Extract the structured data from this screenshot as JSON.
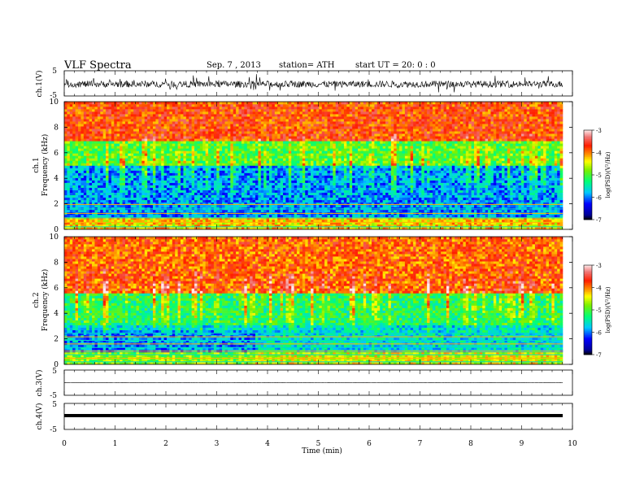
{
  "header": {
    "title": "VLF  Spectra",
    "date": "Sep. 7  , 2013",
    "station": "station= ATH",
    "start": "start  UT  =   20: 0   : 0"
  },
  "chart_data": [
    {
      "type": "line",
      "name": "ch1-waveform",
      "ylabel": "ch.1(V)",
      "ylim": [
        -5,
        5
      ],
      "yticks": [
        "5",
        "-5"
      ],
      "xlim": [
        0,
        9.8
      ],
      "signal": {
        "mean": -0.3,
        "amplitude": "noisy, approx ±1.5 V with spikes to ±3 V"
      }
    },
    {
      "type": "heatmap",
      "name": "ch1-spectrogram",
      "ylabel": "ch.1\nFrequency  (kHz)",
      "ylabel_l1": "ch.1",
      "ylabel_l2": "Frequency  (kHz)",
      "ylim": [
        0,
        10
      ],
      "yticks": [
        "0",
        "2",
        "4",
        "6",
        "8",
        "10"
      ],
      "xlim": [
        0,
        9.8
      ],
      "colorbar": {
        "label": "log(PSD)(V²/Hz)",
        "range": [
          -7,
          -3
        ],
        "ticks": [
          "-3",
          "-4",
          "-5",
          "-6",
          "-7"
        ]
      },
      "bands_log_psd": [
        {
          "f": [
            0,
            1
          ],
          "value": -4.3
        },
        {
          "f": [
            1,
            5
          ],
          "value": -5.9
        },
        {
          "f": [
            5,
            7
          ],
          "value": -5.0
        },
        {
          "f": [
            7,
            10
          ],
          "value": -3.8
        }
      ]
    },
    {
      "type": "heatmap",
      "name": "ch2-spectrogram",
      "ylabel_l1": "ch.2",
      "ylabel_l2": "Frequency  (kHz)",
      "ylim": [
        0,
        10
      ],
      "yticks": [
        "0",
        "2",
        "4",
        "6",
        "8",
        "10"
      ],
      "xlim": [
        0,
        9.8
      ],
      "colorbar": {
        "label": "log(PSD)(V²/Hz)",
        "range": [
          -7,
          -3
        ],
        "ticks": [
          "-3",
          "-4",
          "-5",
          "-6",
          "-7"
        ]
      },
      "bands_log_psd": [
        {
          "f": [
            0,
            1
          ],
          "value": -4.5
        },
        {
          "f": [
            1,
            3
          ],
          "value": -5.6
        },
        {
          "f": [
            3,
            5.5
          ],
          "value": -5.2
        },
        {
          "f": [
            5.5,
            10
          ],
          "value": -3.9
        }
      ],
      "annotations": [
        "band pattern changes at ~3.7 min"
      ]
    },
    {
      "type": "line",
      "name": "ch3-waveform",
      "ylabel": "ch.3(V)",
      "ylim": [
        -5,
        5
      ],
      "yticks": [
        "5",
        "-5"
      ],
      "xlim": [
        0,
        9.8
      ],
      "signal": {
        "mean": 0,
        "amplitude": "near zero"
      }
    },
    {
      "type": "line",
      "name": "ch4-waveform",
      "ylabel": "ch.4(V)",
      "ylim": [
        -5,
        5
      ],
      "yticks": [
        "5",
        "-5"
      ],
      "xlim": [
        0,
        9.8
      ],
      "signal": {
        "mean": 0,
        "amplitude": "thick constant trace near zero"
      }
    }
  ],
  "xaxis": {
    "label": "Time  (min)",
    "ticks": [
      "0",
      "1",
      "2",
      "3",
      "4",
      "5",
      "6",
      "7",
      "8",
      "9",
      "10"
    ],
    "range": [
      0,
      10
    ]
  }
}
